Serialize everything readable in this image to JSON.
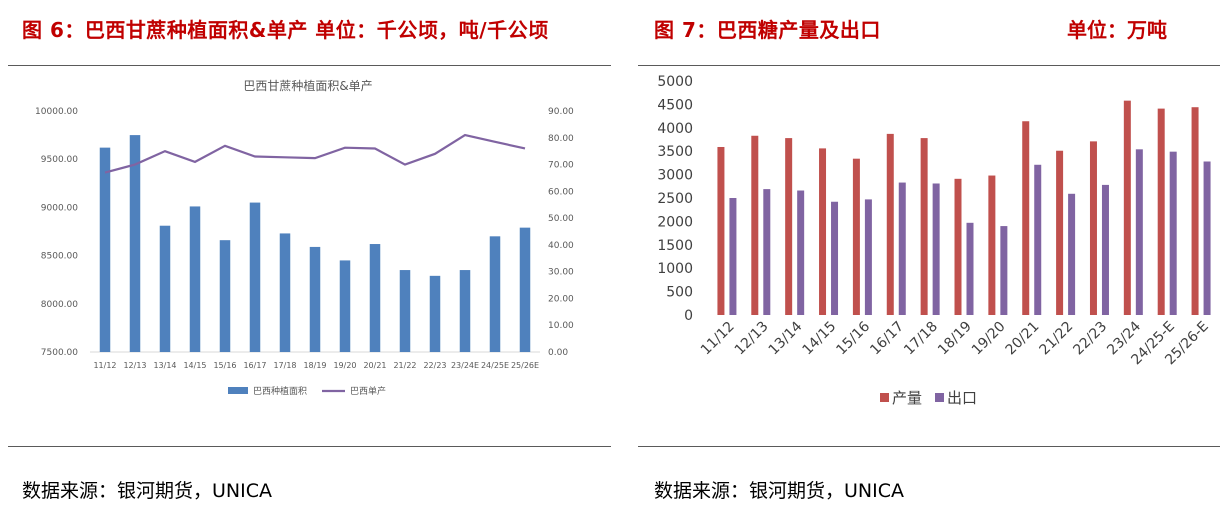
{
  "left": {
    "figure_title": "图 6：巴西甘蔗种植面积&单产  单位：千公顷，吨/千公顷",
    "source": "数据来源：银河期货，UNICA"
  },
  "right": {
    "figure_title": "图 7：巴西糖产量及出口",
    "unit": "单位：万吨",
    "source": "数据来源：银河期货，UNICA"
  },
  "chart_data": [
    {
      "type": "bar+line",
      "title": "巴西甘蔗种植面积&单产",
      "categories": [
        "11/12",
        "12/13",
        "13/14",
        "14/15",
        "15/16",
        "16/17",
        "17/18",
        "18/19",
        "19/20",
        "20/21",
        "21/22",
        "22/23",
        "23/24E",
        "24/25E",
        "25/26E"
      ],
      "series": [
        {
          "name": "巴西种植面积",
          "kind": "bar",
          "axis": "left",
          "color": "#4f81bd",
          "values": [
            9620,
            9750,
            8810,
            9010,
            8660,
            9050,
            8730,
            8590,
            8450,
            8620,
            8350,
            8290,
            8350,
            8700,
            8790
          ]
        },
        {
          "name": "巴西单产",
          "kind": "line",
          "axis": "right",
          "color": "#8064a2",
          "values": [
            67,
            70,
            75,
            71,
            77,
            73,
            72.7,
            72.4,
            76.3,
            76,
            70,
            74,
            81,
            78.5,
            76
          ]
        }
      ],
      "y_left": {
        "min": 7500,
        "max": 10000,
        "ticks": [
          "7500.00",
          "8000.00",
          "8500.00",
          "9000.00",
          "9500.00",
          "10000.00"
        ]
      },
      "y_right": {
        "min": 0,
        "max": 90,
        "ticks": [
          "0.00",
          "10.00",
          "20.00",
          "30.00",
          "40.00",
          "50.00",
          "60.00",
          "70.00",
          "80.00",
          "90.00"
        ]
      },
      "legend": "bottom"
    },
    {
      "type": "bar",
      "title": "",
      "categories": [
        "11/12",
        "12/13",
        "13/14",
        "14/15",
        "15/16",
        "16/17",
        "17/18",
        "18/19",
        "19/20",
        "20/21",
        "21/22",
        "22/23",
        "23/24",
        "24/25-E",
        "25/26-E"
      ],
      "series": [
        {
          "name": "产量",
          "color": "#c0504d",
          "values": [
            3590,
            3830,
            3780,
            3560,
            3340,
            3870,
            3780,
            2910,
            2980,
            4140,
            3510,
            3710,
            4580,
            4410,
            4440
          ]
        },
        {
          "name": "出口",
          "color": "#8064a2",
          "values": [
            2500,
            2690,
            2660,
            2420,
            2470,
            2830,
            2810,
            1970,
            1900,
            3210,
            2590,
            2780,
            3540,
            3490,
            3280
          ]
        }
      ],
      "y": {
        "min": 0,
        "max": 5000,
        "ticks": [
          "0",
          "500",
          "1000",
          "1500",
          "2000",
          "2500",
          "3000",
          "3500",
          "4000",
          "4500",
          "5000"
        ]
      },
      "legend": "bottom"
    }
  ]
}
